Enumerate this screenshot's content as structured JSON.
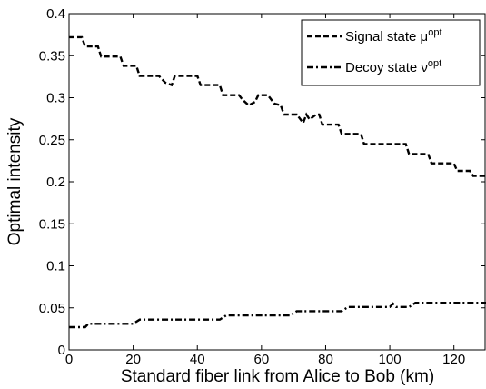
{
  "chart_data": {
    "type": "line",
    "xlabel": "Standard fiber link from Alice to Bob (km)",
    "ylabel": "Optimal intensity",
    "xlim": [
      0,
      130
    ],
    "ylim": [
      0,
      0.4
    ],
    "xticks": [
      0,
      20,
      40,
      60,
      80,
      100,
      120
    ],
    "yticks": [
      0,
      0.05,
      0.1,
      0.15,
      0.2,
      0.25,
      0.3,
      0.35,
      0.4
    ],
    "xtick_labels": [
      "0",
      "20",
      "40",
      "60",
      "80",
      "100",
      "120"
    ],
    "ytick_labels": [
      "0",
      "0.05",
      "0.1",
      "0.15",
      "0.2",
      "0.25",
      "0.3",
      "0.35",
      "0.4"
    ],
    "grid": false,
    "legend_position": "top-right",
    "series": [
      {
        "name": "Signal state",
        "symbol": "μ",
        "superscript": "opt",
        "line_style": "dashed",
        "color": "#000000",
        "points": [
          [
            0,
            0.372
          ],
          [
            4,
            0.372
          ],
          [
            5,
            0.361
          ],
          [
            9,
            0.361
          ],
          [
            10,
            0.349
          ],
          [
            16,
            0.349
          ],
          [
            17,
            0.338
          ],
          [
            21,
            0.338
          ],
          [
            22,
            0.326
          ],
          [
            28,
            0.326
          ],
          [
            29,
            0.322
          ],
          [
            30,
            0.318
          ],
          [
            32,
            0.315
          ],
          [
            33,
            0.326
          ],
          [
            40,
            0.326
          ],
          [
            41,
            0.315
          ],
          [
            47,
            0.315
          ],
          [
            48,
            0.303
          ],
          [
            53,
            0.303
          ],
          [
            54,
            0.298
          ],
          [
            56,
            0.291
          ],
          [
            58,
            0.295
          ],
          [
            59,
            0.303
          ],
          [
            62,
            0.303
          ],
          [
            64,
            0.293
          ],
          [
            66,
            0.291
          ],
          [
            67,
            0.28
          ],
          [
            71,
            0.28
          ],
          [
            73,
            0.27
          ],
          [
            74,
            0.28
          ],
          [
            75,
            0.274
          ],
          [
            77,
            0.28
          ],
          [
            78,
            0.28
          ],
          [
            79,
            0.268
          ],
          [
            84,
            0.268
          ],
          [
            85,
            0.257
          ],
          [
            91,
            0.257
          ],
          [
            92,
            0.245
          ],
          [
            98,
            0.245
          ],
          [
            99,
            0.245
          ],
          [
            105,
            0.245
          ],
          [
            106,
            0.233
          ],
          [
            112,
            0.233
          ],
          [
            113,
            0.222
          ],
          [
            120,
            0.222
          ],
          [
            121,
            0.213
          ],
          [
            125,
            0.213
          ],
          [
            126,
            0.207
          ],
          [
            130,
            0.207
          ]
        ]
      },
      {
        "name": "Decoy state",
        "symbol": "ν",
        "superscript": "opt",
        "line_style": "dash-dot",
        "color": "#000000",
        "points": [
          [
            0,
            0.027
          ],
          [
            5,
            0.027
          ],
          [
            6,
            0.031
          ],
          [
            20,
            0.031
          ],
          [
            22,
            0.036
          ],
          [
            47,
            0.036
          ],
          [
            49,
            0.041
          ],
          [
            69,
            0.041
          ],
          [
            71,
            0.046
          ],
          [
            85,
            0.046
          ],
          [
            87,
            0.051
          ],
          [
            100,
            0.051
          ],
          [
            101,
            0.055
          ],
          [
            102,
            0.051
          ],
          [
            106,
            0.051
          ],
          [
            108,
            0.056
          ],
          [
            130,
            0.056
          ]
        ]
      }
    ]
  }
}
